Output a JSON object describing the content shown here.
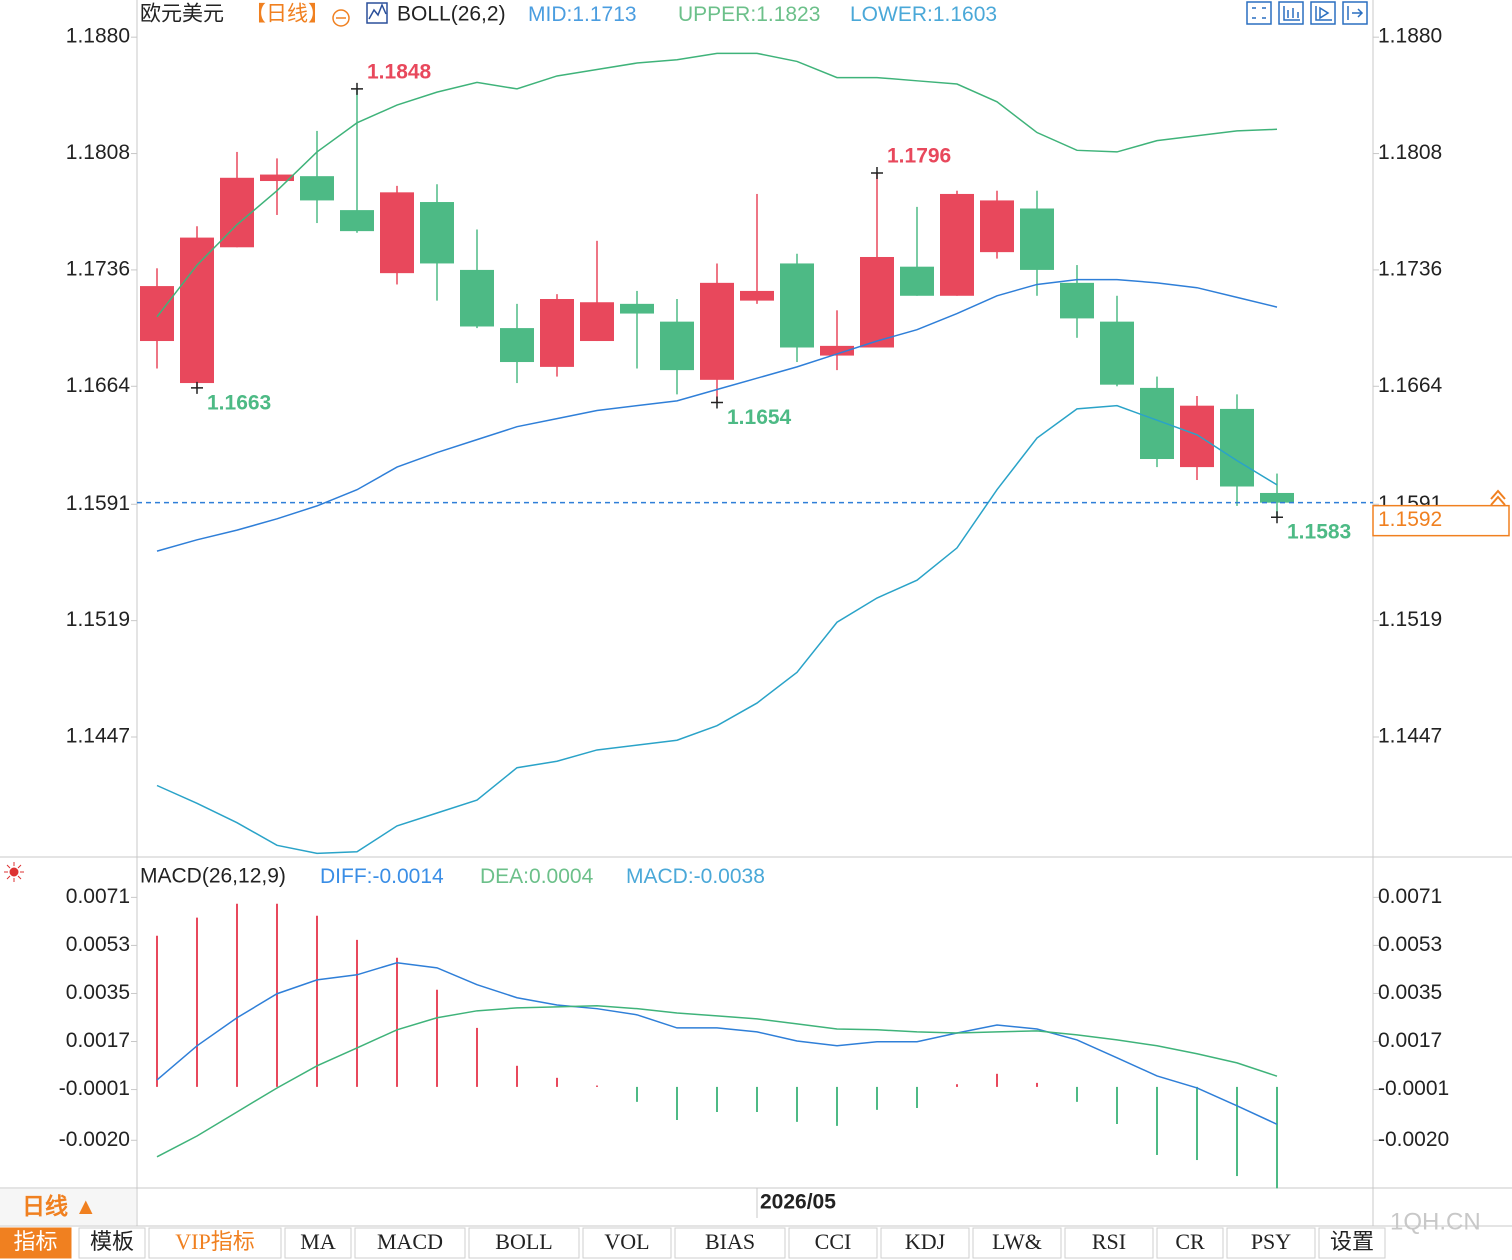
{
  "chart_data": [
    {
      "type": "candlestick",
      "title": "欧元美元",
      "subtitle": "【日线】",
      "indicator": "BOLL(26,2)",
      "up_color": "#e8485c",
      "down_color": "#4dba85",
      "open": [
        1.1692,
        1.1666,
        1.175,
        1.1791,
        1.1794,
        1.1773,
        1.1734,
        1.1778,
        1.1736,
        1.17,
        1.1676,
        1.1692,
        1.1715,
        1.1704,
        1.1668,
        1.1717,
        1.174,
        1.1683,
        1.1688,
        1.1738,
        1.172,
        1.1747,
        1.1774,
        1.1728,
        1.1704,
        1.1663,
        1.1614,
        1.165,
        1.1598
      ],
      "high": [
        1.1737,
        1.1763,
        1.1809,
        1.1805,
        1.1822,
        1.1848,
        1.1788,
        1.1789,
        1.1761,
        1.1715,
        1.1721,
        1.1754,
        1.1723,
        1.1718,
        1.174,
        1.1783,
        1.1746,
        1.1711,
        1.1796,
        1.1775,
        1.1785,
        1.1785,
        1.1785,
        1.1739,
        1.172,
        1.167,
        1.1658,
        1.1659,
        1.161
      ],
      "low": [
        1.1675,
        1.1663,
        1.175,
        1.177,
        1.1765,
        1.1759,
        1.1727,
        1.1717,
        1.17,
        1.1666,
        1.167,
        1.1692,
        1.1675,
        1.1659,
        1.1654,
        1.1715,
        1.1679,
        1.1674,
        1.1688,
        1.172,
        1.172,
        1.1743,
        1.172,
        1.1694,
        1.1664,
        1.1614,
        1.1606,
        1.159,
        1.1583
      ],
      "close": [
        1.1726,
        1.1756,
        1.1793,
        1.1795,
        1.1779,
        1.176,
        1.1784,
        1.174,
        1.1701,
        1.1679,
        1.1718,
        1.1716,
        1.1709,
        1.1674,
        1.1728,
        1.1723,
        1.1688,
        1.1689,
        1.1744,
        1.172,
        1.1783,
        1.1779,
        1.1736,
        1.1706,
        1.1665,
        1.1619,
        1.1652,
        1.1602,
        1.1592
      ],
      "series": [
        {
          "name": "MID:",
          "color": "#2f7fd8",
          "label_color": "#4a9de0",
          "values": [
            1.1562,
            1.1569,
            1.1575,
            1.1582,
            1.159,
            1.16,
            1.1614,
            1.1623,
            1.1631,
            1.1639,
            1.1644,
            1.1649,
            1.1652,
            1.1655,
            1.1662,
            1.1669,
            1.1676,
            1.1684,
            1.1692,
            1.1699,
            1.1709,
            1.172,
            1.1727,
            1.173,
            1.173,
            1.1728,
            1.1725,
            1.1719,
            1.1713
          ]
        },
        {
          "name": "UPPER:",
          "color": "#3fb37a",
          "label_color": "#6cc08a",
          "values": [
            1.1707,
            1.1739,
            1.1764,
            1.1785,
            1.1809,
            1.1827,
            1.1838,
            1.1846,
            1.1852,
            1.1848,
            1.1856,
            1.186,
            1.1864,
            1.1866,
            1.187,
            1.187,
            1.1865,
            1.1855,
            1.1855,
            1.1853,
            1.1851,
            1.184,
            1.1821,
            1.181,
            1.1809,
            1.1816,
            1.1819,
            1.1822,
            1.1823
          ]
        },
        {
          "name": "LOWER:",
          "color": "#2aa3c8",
          "label_color": "#4aa8d8",
          "values": [
            1.1417,
            1.1406,
            1.1394,
            1.138,
            1.1375,
            1.1376,
            1.1392,
            1.14,
            1.1408,
            1.1428,
            1.1432,
            1.1439,
            1.1442,
            1.1445,
            1.1454,
            1.1468,
            1.1487,
            1.1518,
            1.1533,
            1.1544,
            1.1564,
            1.16,
            1.1632,
            1.165,
            1.1652,
            1.1643,
            1.1634,
            1.1618,
            1.1603
          ]
        }
      ],
      "high_annotations": [
        {
          "index": 5,
          "text": "1.1848"
        },
        {
          "index": 18,
          "text": "1.1796"
        }
      ],
      "low_annotations": [
        {
          "index": 1,
          "text": "1.1663"
        },
        {
          "index": 14,
          "text": "1.1654"
        },
        {
          "index": 28,
          "text": "1.1583"
        }
      ],
      "ylim": [
        1.1374,
        1.1903
      ],
      "yticks": [
        {
          "value": 1.188,
          "label": "1.1880"
        },
        1.1808,
        1.1736,
        1.1664,
        1.1591,
        1.1519,
        1.1447
      ],
      "grid": false
    },
    {
      "type": "macd",
      "title": "MACD(26,12,9)",
      "categories": [
        null,
        null,
        null,
        null,
        null,
        null,
        null,
        null,
        null,
        null,
        null,
        null,
        null,
        null,
        null,
        "2026/05",
        null,
        null,
        null,
        null,
        null,
        null,
        null,
        null,
        null,
        null,
        null,
        null,
        null
      ],
      "series": [
        {
          "name": "DIFF:",
          "kind": "line",
          "color": "#2f7fd8",
          "label_color": "#3a8ee6",
          "values": [
            0.00026,
            0.00154,
            0.00259,
            0.00349,
            0.00401,
            0.0042,
            0.00465,
            0.00446,
            0.00383,
            0.00334,
            0.00307,
            0.00293,
            0.0027,
            0.00221,
            0.00221,
            0.00206,
            0.00172,
            0.00154,
            0.00169,
            0.00169,
            0.00202,
            0.00232,
            0.00217,
            0.00176,
            0.00109,
            0.00041,
            -4e-05,
            -0.00071,
            -0.0014
          ]
        },
        {
          "name": "DEA:",
          "kind": "line",
          "color": "#3fb37a",
          "label_color": "#6cc08a",
          "values": [
            -0.00262,
            -0.00184,
            -0.00094,
            -4e-05,
            0.00079,
            0.00146,
            0.00214,
            0.00259,
            0.00285,
            0.00296,
            0.003,
            0.00304,
            0.00293,
            0.00277,
            0.00266,
            0.00255,
            0.00236,
            0.00217,
            0.00214,
            0.00206,
            0.00202,
            0.00206,
            0.0021,
            0.00195,
            0.00176,
            0.00154,
            0.00124,
            0.0009,
            0.0004
          ]
        },
        {
          "name": "MACD:",
          "kind": "bar",
          "color": "#e8485c",
          "negative_color": "#4dba85",
          "label_color": "#4aa8d8",
          "values": [
            0.00566,
            0.00634,
            0.00686,
            0.00686,
            0.00641,
            0.00551,
            0.00484,
            0.00364,
            0.00221,
            0.00079,
            0.00034,
            5e-05,
            -0.00056,
            -0.00124,
            -0.00094,
            -0.00094,
            -0.00131,
            -0.00146,
            -0.00086,
            -0.00079,
            0.0001,
            0.00049,
            0.00015,
            -0.00056,
            -0.00139,
            -0.00255,
            -0.00274,
            -0.00334,
            -0.0038
          ]
        }
      ],
      "ylim": [
        -0.0039,
        0.0085
      ],
      "yticks": [
        0.0071,
        0.0053,
        0.0035,
        0.0017,
        -0.0001,
        {
          "value": -0.002,
          "label": "-0.0020"
        }
      ],
      "grid": false
    }
  ],
  "toolbar": {
    "period": "日线 ▲",
    "tabs": [
      "指标",
      "模板",
      "VIP指标",
      "MA",
      "MACD",
      "BOLL",
      "VOL",
      "BIAS",
      "CCI",
      "KDJ",
      "LW&",
      "RSI",
      "CR",
      "PSY",
      "设置"
    ]
  },
  "watermark": "1QH.CN"
}
